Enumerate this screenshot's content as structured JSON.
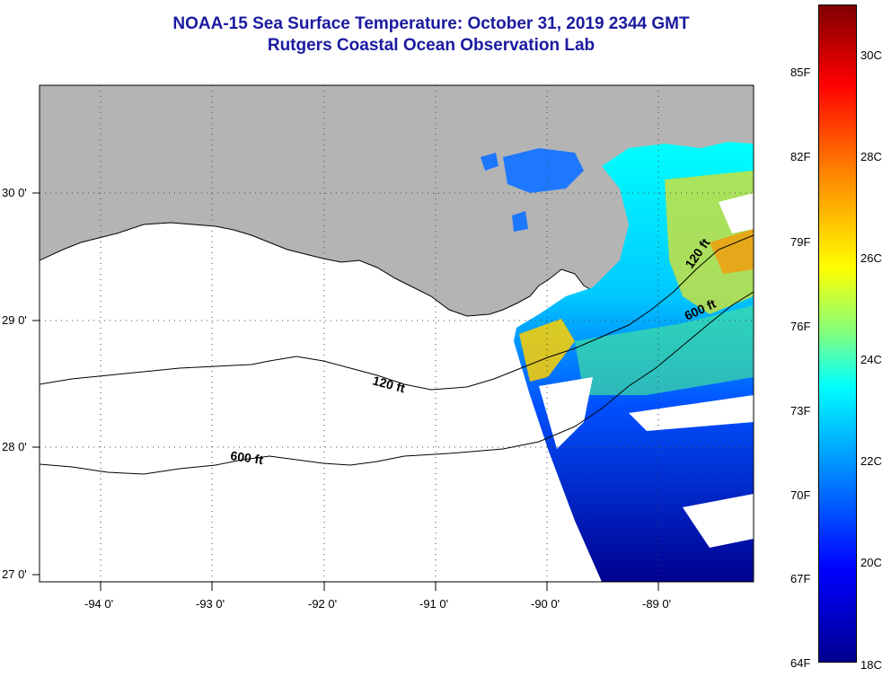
{
  "title": {
    "line1": "NOAA-15 Sea Surface Temperature:  October 31, 2019 2344 GMT",
    "line2": "Rutgers Coastal Ocean Observation Lab"
  },
  "axes": {
    "latitude_labels": [
      "30 0'",
      "29 0'",
      "28 0'",
      "27 0'"
    ],
    "longitude_labels": [
      "-94 0'",
      "-93 0'",
      "-92 0'",
      "-91 0'",
      "-90 0'",
      "-89 0'"
    ]
  },
  "contours": {
    "label_120": "120 ft",
    "label_600": "600 ft"
  },
  "colorbar": {
    "fahrenheit_labels": [
      "85F",
      "82F",
      "79F",
      "76F",
      "73F",
      "70F",
      "67F",
      "64F"
    ],
    "celsius_labels": [
      "30C",
      "28C",
      "26C",
      "24C",
      "22C",
      "20C",
      "18C"
    ]
  },
  "colors": {
    "land": "#b4b4b4",
    "title": "#1a1aa0",
    "ocean_nodata": "#ffffff"
  }
}
